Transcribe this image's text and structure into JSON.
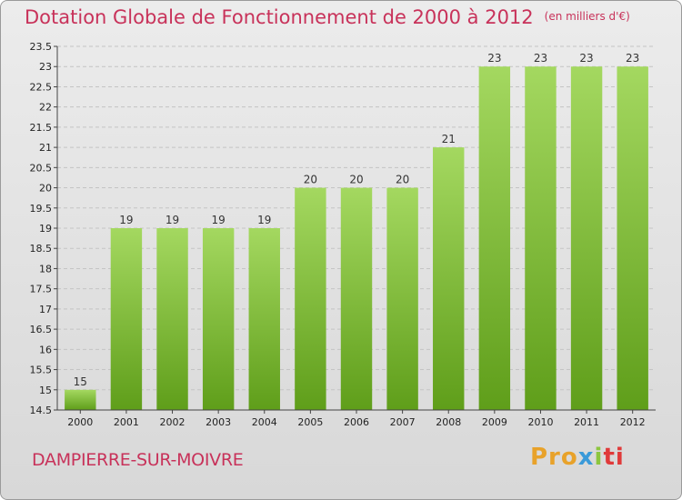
{
  "header": {
    "title": "Dotation Globale de Fonctionnement de 2000 à 2012",
    "unit": "(en milliers d'€)"
  },
  "footer": {
    "commune": "DAMPIERRE-SUR-MOIVRE",
    "logo": {
      "p1": "Pro",
      "p2": "x",
      "p3": "i",
      "p4": "ti"
    }
  },
  "colors": {
    "title": "#c8325a",
    "bar_top": "#a4d860",
    "bar_bottom": "#5f9e1a",
    "background": "#e4e4e4"
  },
  "chart_data": {
    "type": "bar",
    "title": "Dotation Globale de Fonctionnement de 2000 à 2012",
    "subtitle": "(en milliers d'€)",
    "categories": [
      "2000",
      "2001",
      "2002",
      "2003",
      "2004",
      "2005",
      "2006",
      "2007",
      "2008",
      "2009",
      "2010",
      "2011",
      "2012"
    ],
    "values": [
      15,
      19,
      19,
      19,
      19,
      20,
      20,
      20,
      21,
      23,
      23,
      23,
      23
    ],
    "data_labels": [
      "15",
      "19",
      "19",
      "19",
      "19",
      "20",
      "20",
      "20",
      "21",
      "23",
      "23",
      "23",
      "23"
    ],
    "ylim": [
      14.5,
      23.5
    ],
    "yticks": [
      14.5,
      15,
      15.5,
      16,
      16.5,
      17,
      17.5,
      18,
      18.5,
      19,
      19.5,
      20,
      20.5,
      21,
      21.5,
      22,
      22.5,
      23,
      23.5
    ],
    "ytick_labels": [
      "14.5",
      "15",
      "15.5",
      "16",
      "16.5",
      "17",
      "17.5",
      "18",
      "18.5",
      "19",
      "19.5",
      "20",
      "20.5",
      "21",
      "21.5",
      "22",
      "22.5",
      "23",
      "23.5"
    ],
    "grid": true,
    "legend": "none"
  }
}
